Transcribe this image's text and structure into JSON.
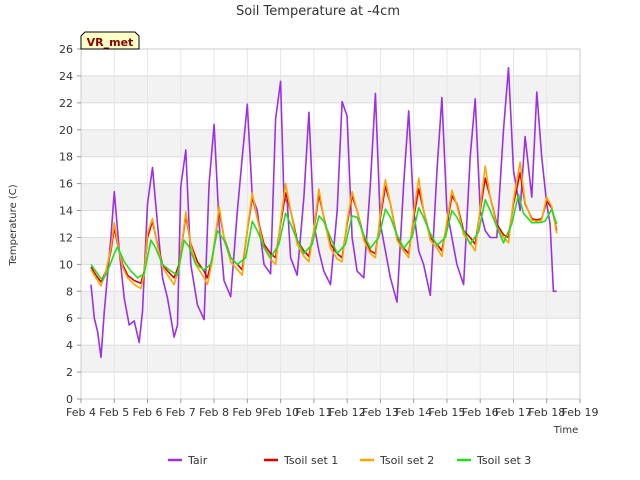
{
  "chart_data": {
    "type": "line",
    "title": "Soil Temperature at -4cm",
    "xlabel": "Time",
    "ylabel": "Temperature (C)",
    "badge": "VR_met",
    "xlim": [
      4,
      19
    ],
    "ylim": [
      0,
      26
    ],
    "x_ticks": [
      4,
      5,
      6,
      7,
      8,
      9,
      10,
      11,
      12,
      13,
      14,
      15,
      16,
      17,
      18,
      19
    ],
    "x_tick_labels": [
      "Feb 4",
      "Feb 5",
      "Feb 6",
      "Feb 7",
      "Feb 8",
      "Feb 9",
      "Feb 10",
      "Feb 11",
      "Feb 12",
      "Feb 13",
      "Feb 14",
      "Feb 15",
      "Feb 16",
      "Feb 17",
      "Feb 18",
      "Feb 19"
    ],
    "y_ticks": [
      0,
      2,
      4,
      6,
      8,
      10,
      12,
      14,
      16,
      18,
      20,
      22,
      24,
      26
    ],
    "grid": true,
    "legend_position": "bottom",
    "series": [
      {
        "name": "Tair",
        "color": "#9b30e8",
        "x": [
          4.3,
          4.4,
          4.5,
          4.6,
          4.7,
          4.9,
          5.0,
          5.15,
          5.3,
          5.45,
          5.6,
          5.75,
          5.85,
          6.0,
          6.15,
          6.3,
          6.45,
          6.6,
          6.8,
          6.9,
          7.0,
          7.15,
          7.3,
          7.5,
          7.7,
          7.85,
          8.0,
          8.15,
          8.3,
          8.5,
          8.7,
          8.85,
          9.0,
          9.15,
          9.3,
          9.5,
          9.7,
          9.85,
          10.0,
          10.1,
          10.2,
          10.3,
          10.5,
          10.7,
          10.85,
          11.0,
          11.15,
          11.3,
          11.5,
          11.7,
          11.85,
          12.0,
          12.15,
          12.3,
          12.5,
          12.7,
          12.85,
          13.0,
          13.15,
          13.3,
          13.5,
          13.7,
          13.85,
          14.0,
          14.15,
          14.3,
          14.5,
          14.7,
          14.85,
          15.0,
          15.15,
          15.3,
          15.5,
          15.7,
          15.85,
          16.0,
          16.15,
          16.3,
          16.5,
          16.7,
          16.85,
          17.0,
          17.2,
          17.35,
          17.55,
          17.7,
          17.85,
          18.0,
          18.1,
          18.2,
          18.3
        ],
        "values": [
          8.5,
          6.0,
          5.0,
          3.1,
          6.5,
          12.0,
          15.4,
          11.0,
          7.5,
          5.5,
          5.8,
          4.2,
          6.5,
          14.5,
          17.2,
          13.0,
          9.0,
          7.5,
          4.6,
          5.5,
          15.8,
          18.5,
          10.0,
          7.0,
          5.9,
          16.0,
          20.4,
          13.0,
          8.8,
          7.6,
          14.0,
          18.0,
          21.9,
          15.0,
          14.0,
          10.0,
          9.3,
          20.8,
          23.6,
          15.0,
          14.6,
          10.5,
          9.2,
          15.0,
          21.3,
          13.0,
          11.0,
          9.5,
          8.5,
          14.0,
          22.1,
          21.0,
          12.0,
          9.5,
          9.0,
          16.0,
          22.7,
          13.0,
          11.0,
          9.0,
          7.2,
          16.0,
          21.4,
          14.0,
          11.0,
          10.0,
          7.7,
          17.0,
          22.4,
          14.0,
          12.0,
          10.0,
          8.5,
          18.0,
          22.3,
          14.0,
          12.5,
          12.0,
          12.0,
          20.0,
          24.6,
          17.0,
          14.0,
          19.5,
          15.0,
          22.8,
          18.0,
          14.5,
          13.0,
          8.0,
          8.0
        ]
      },
      {
        "name": "Tsoil set 1",
        "color": "#dd0000",
        "x": [
          4.3,
          4.45,
          4.6,
          4.75,
          4.9,
          5.0,
          5.1,
          5.25,
          5.4,
          5.6,
          5.8,
          5.9,
          6.0,
          6.15,
          6.3,
          6.45,
          6.6,
          6.8,
          6.95,
          7.15,
          7.3,
          7.5,
          7.7,
          7.8,
          7.95,
          8.15,
          8.3,
          8.5,
          8.7,
          8.85,
          9.0,
          9.15,
          9.3,
          9.5,
          9.7,
          9.85,
          10.0,
          10.15,
          10.3,
          10.5,
          10.7,
          10.85,
          11.0,
          11.15,
          11.3,
          11.5,
          11.7,
          11.85,
          12.0,
          12.15,
          12.3,
          12.5,
          12.7,
          12.85,
          13.0,
          13.15,
          13.3,
          13.5,
          13.7,
          13.85,
          14.0,
          14.15,
          14.3,
          14.5,
          14.7,
          14.85,
          15.0,
          15.15,
          15.3,
          15.5,
          15.7,
          15.85,
          16.0,
          16.15,
          16.3,
          16.5,
          16.7,
          16.85,
          17.0,
          17.2,
          17.35,
          17.55,
          17.7,
          17.85,
          18.0,
          18.15,
          18.3
        ],
        "values": [
          9.8,
          9.2,
          8.7,
          9.5,
          11.0,
          12.7,
          11.5,
          10.0,
          9.2,
          8.8,
          8.6,
          9.5,
          12.0,
          13.2,
          11.5,
          10.0,
          9.5,
          9.0,
          10.0,
          13.6,
          11.5,
          10.2,
          9.5,
          9.0,
          10.5,
          14.0,
          12.0,
          10.5,
          10.0,
          9.6,
          12.5,
          15.0,
          13.5,
          11.5,
          10.8,
          10.5,
          13.0,
          15.3,
          14.0,
          11.8,
          11.0,
          10.6,
          12.5,
          15.2,
          13.5,
          11.5,
          10.8,
          10.5,
          13.0,
          15.1,
          14.0,
          12.0,
          11.0,
          10.8,
          13.5,
          15.8,
          14.5,
          12.0,
          11.2,
          10.8,
          13.5,
          15.6,
          14.0,
          12.0,
          11.5,
          11.0,
          13.0,
          15.1,
          14.5,
          12.5,
          12.0,
          11.5,
          14.0,
          16.4,
          15.0,
          13.0,
          12.2,
          12.0,
          14.5,
          16.8,
          14.5,
          13.4,
          13.3,
          13.4,
          14.7,
          14.2,
          12.5
        ]
      },
      {
        "name": "Tsoil set 2",
        "color": "#ffa500",
        "x": [
          4.3,
          4.45,
          4.6,
          4.75,
          4.9,
          5.0,
          5.1,
          5.25,
          5.4,
          5.6,
          5.8,
          5.9,
          6.0,
          6.15,
          6.3,
          6.45,
          6.6,
          6.8,
          6.95,
          7.15,
          7.3,
          7.5,
          7.7,
          7.8,
          7.95,
          8.15,
          8.3,
          8.5,
          8.7,
          8.85,
          9.0,
          9.15,
          9.3,
          9.5,
          9.7,
          9.85,
          10.0,
          10.15,
          10.3,
          10.5,
          10.7,
          10.85,
          11.0,
          11.15,
          11.3,
          11.5,
          11.7,
          11.85,
          12.0,
          12.15,
          12.3,
          12.5,
          12.7,
          12.85,
          13.0,
          13.15,
          13.3,
          13.5,
          13.7,
          13.85,
          14.0,
          14.15,
          14.3,
          14.5,
          14.7,
          14.85,
          15.0,
          15.15,
          15.3,
          15.5,
          15.7,
          15.85,
          16.0,
          16.15,
          16.3,
          16.5,
          16.7,
          16.85,
          17.0,
          17.2,
          17.35,
          17.55,
          17.7,
          17.85,
          18.0,
          18.15,
          18.3
        ],
        "values": [
          9.6,
          9.0,
          8.4,
          9.5,
          11.2,
          13.1,
          11.6,
          9.8,
          9.0,
          8.5,
          8.2,
          9.3,
          12.3,
          13.4,
          11.4,
          9.8,
          9.2,
          8.5,
          9.8,
          13.9,
          11.4,
          9.8,
          9.0,
          8.5,
          10.3,
          14.3,
          12.0,
          10.2,
          9.6,
          9.2,
          12.6,
          15.3,
          13.4,
          11.2,
          10.4,
          10.0,
          13.2,
          16.0,
          14.0,
          11.5,
          10.6,
          10.2,
          12.6,
          15.6,
          13.4,
          11.2,
          10.4,
          10.2,
          13.2,
          15.4,
          14.0,
          11.8,
          10.8,
          10.5,
          13.8,
          16.3,
          14.5,
          11.8,
          11.0,
          10.5,
          13.8,
          16.4,
          14.0,
          11.8,
          11.2,
          10.6,
          13.2,
          15.5,
          14.4,
          12.2,
          11.6,
          11.0,
          14.2,
          17.3,
          15.0,
          12.8,
          12.0,
          11.6,
          14.8,
          17.6,
          14.6,
          13.3,
          13.2,
          13.3,
          15.0,
          14.3,
          12.3
        ]
      },
      {
        "name": "Tsoil set 3",
        "color": "#22dd22",
        "x": [
          4.3,
          4.5,
          4.65,
          4.8,
          5.0,
          5.1,
          5.3,
          5.5,
          5.7,
          5.9,
          6.1,
          6.25,
          6.45,
          6.7,
          6.9,
          7.1,
          7.25,
          7.45,
          7.7,
          7.9,
          8.1,
          8.3,
          8.5,
          8.7,
          8.95,
          9.15,
          9.3,
          9.5,
          9.7,
          9.95,
          10.15,
          10.3,
          10.5,
          10.7,
          10.95,
          11.15,
          11.3,
          11.5,
          11.7,
          11.95,
          12.15,
          12.3,
          12.5,
          12.7,
          12.95,
          13.15,
          13.3,
          13.5,
          13.7,
          13.95,
          14.15,
          14.3,
          14.5,
          14.7,
          14.95,
          15.15,
          15.3,
          15.5,
          15.7,
          15.95,
          16.15,
          16.3,
          16.5,
          16.7,
          16.95,
          17.15,
          17.3,
          17.55,
          17.75,
          17.95,
          18.15,
          18.3
        ],
        "values": [
          10.0,
          9.3,
          8.8,
          9.5,
          10.8,
          11.3,
          10.2,
          9.5,
          9.0,
          9.3,
          11.8,
          11.2,
          10.0,
          9.5,
          9.2,
          11.8,
          11.3,
          10.0,
          9.6,
          10.0,
          12.5,
          11.8,
          10.5,
          10.0,
          10.5,
          13.2,
          12.5,
          11.3,
          10.5,
          11.5,
          13.8,
          13.0,
          11.8,
          10.8,
          11.5,
          13.6,
          13.2,
          12.0,
          10.8,
          11.5,
          13.6,
          13.5,
          12.2,
          11.2,
          12.0,
          14.1,
          13.5,
          12.2,
          11.2,
          12.0,
          14.2,
          13.5,
          12.3,
          11.4,
          12.0,
          14.0,
          13.5,
          12.5,
          11.5,
          12.4,
          14.8,
          14.0,
          12.8,
          11.6,
          13.0,
          15.2,
          13.8,
          13.1,
          13.1,
          13.2,
          14.1,
          13.0
        ]
      }
    ]
  }
}
